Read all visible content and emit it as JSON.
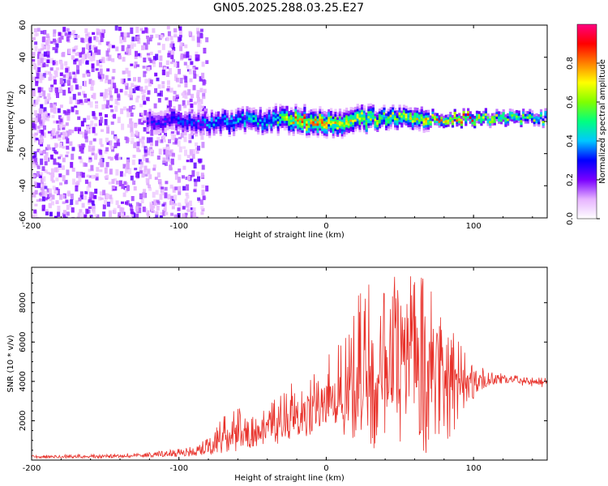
{
  "title": "GN05.2025.288.03.25.E27",
  "chart_data": [
    {
      "type": "heatmap",
      "xlabel": "Height of straight line (km)",
      "ylabel": "Frequency (Hz)",
      "xlim": [
        -200,
        150
      ],
      "ylim": [
        -60,
        60
      ],
      "xticks": [
        -200,
        -100,
        0,
        100
      ],
      "yticks": [
        -60,
        -40,
        -20,
        0,
        20,
        40,
        60
      ],
      "colorbar": {
        "label": "Normalized spectral amplitude",
        "range": [
          0,
          1
        ],
        "ticks": [
          0.0,
          0.2,
          0.4,
          0.6,
          0.8
        ],
        "tick_labels": [
          "0.0",
          "0.2",
          "0.4",
          "0.6",
          "0.8"
        ],
        "colors": [
          "#ffffff",
          "#e6b3ff",
          "#7a00ff",
          "#0000ff",
          "#00c8ff",
          "#00ff80",
          "#80ff00",
          "#ffff00",
          "#ff8000",
          "#ff0000",
          "#ff0080"
        ]
      },
      "ridge": {
        "x": [
          -120,
          -100,
          -80,
          -60,
          -40,
          -30,
          -20,
          0,
          20,
          40,
          60,
          80,
          100,
          120,
          150
        ],
        "center_hz": [
          2,
          1,
          0,
          1,
          2,
          2,
          2,
          0,
          2,
          3,
          3,
          3,
          3,
          3,
          3
        ],
        "peak_amplitude": [
          0.3,
          0.35,
          0.4,
          0.45,
          0.5,
          0.6,
          0.85,
          0.8,
          0.7,
          0.7,
          0.75,
          0.85,
          0.85,
          0.7,
          0.6
        ]
      }
    },
    {
      "type": "line",
      "xlabel": "Height of straight line (km)",
      "ylabel": "SNR (10 * v/v)",
      "xlim": [
        -200,
        150
      ],
      "ylim": [
        0,
        9800
      ],
      "xticks": [
        -200,
        -100,
        0,
        100
      ],
      "yticks": [
        2000,
        4000,
        6000,
        8000
      ],
      "series": [
        {
          "name": "SNR",
          "color": "#e8312a",
          "envelope_x": [
            -200,
            -150,
            -120,
            -100,
            -90,
            -80,
            -70,
            -60,
            -50,
            -40,
            -30,
            -20,
            -10,
            0,
            10,
            20,
            30,
            40,
            50,
            60,
            70,
            80,
            90,
            100,
            110,
            120,
            130,
            140,
            150
          ],
          "envelope_min": [
            100,
            100,
            150,
            150,
            200,
            300,
            300,
            400,
            600,
            800,
            800,
            1100,
            1200,
            1500,
            1500,
            500,
            400,
            300,
            300,
            200,
            400,
            800,
            1800,
            3000,
            3800,
            3900,
            3800,
            3700,
            3700
          ],
          "envelope_max": [
            250,
            300,
            400,
            600,
            700,
            1200,
            2300,
            2700,
            2200,
            2800,
            3500,
            4200,
            4500,
            5300,
            6000,
            8500,
            9500,
            9400,
            9300,
            9700,
            8900,
            7300,
            6000,
            5000,
            4500,
            4400,
            4300,
            4200,
            4200
          ],
          "mean": [
            150,
            200,
            250,
            300,
            400,
            700,
            1100,
            1400,
            1300,
            1600,
            1900,
            2300,
            2600,
            3000,
            3300,
            3800,
            4200,
            4600,
            4800,
            5000,
            4700,
            4300,
            4100,
            4000,
            4100,
            4100,
            4050,
            4000,
            3950
          ]
        }
      ]
    }
  ]
}
